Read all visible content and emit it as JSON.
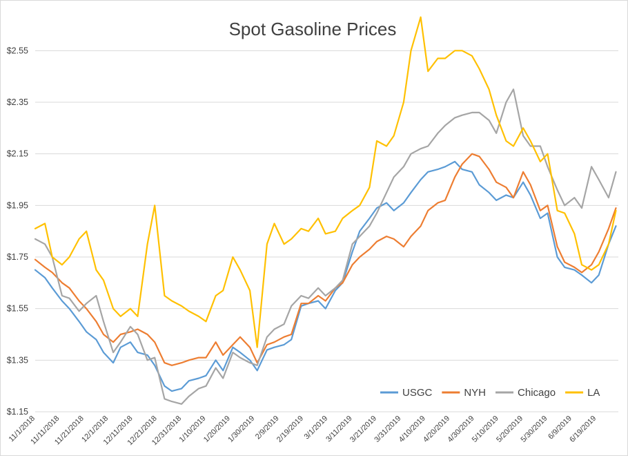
{
  "chart_data": {
    "type": "line",
    "title": "Spot Gasoline Prices",
    "xlabel": "",
    "ylabel": "",
    "ylim": [
      1.15,
      2.65
    ],
    "y_ticks": [
      "$1.15",
      "$1.35",
      "$1.55",
      "$1.75",
      "$1.95",
      "$2.15",
      "$2.35",
      "$2.55"
    ],
    "y_tick_values": [
      1.15,
      1.35,
      1.55,
      1.75,
      1.95,
      2.15,
      2.35,
      2.55
    ],
    "x_range": [
      "2018-11-01",
      "2019-06-28"
    ],
    "x_ticks": [
      "11/1/2018",
      "11/11/2018",
      "11/21/2018",
      "12/1/2018",
      "12/11/2018",
      "12/21/2018",
      "12/31/2018",
      "1/10/2019",
      "1/20/2019",
      "1/30/2019",
      "2/9/2019",
      "2/19/2019",
      "3/1/2019",
      "3/11/2019",
      "3/21/2019",
      "3/31/2019",
      "4/10/2019",
      "4/20/2019",
      "4/30/2019",
      "5/10/2019",
      "5/20/2019",
      "5/30/2019",
      "6/9/2019",
      "6/19/2019"
    ],
    "x_tick_dates": [
      "2018-11-01",
      "2018-11-11",
      "2018-11-21",
      "2018-12-01",
      "2018-12-11",
      "2018-12-21",
      "2018-12-31",
      "2019-01-10",
      "2019-01-20",
      "2019-01-30",
      "2019-02-09",
      "2019-02-19",
      "2019-03-01",
      "2019-03-11",
      "2019-03-21",
      "2019-03-31",
      "2019-04-10",
      "2019-04-20",
      "2019-04-30",
      "2019-05-10",
      "2019-05-20",
      "2019-05-30",
      "2019-06-09",
      "2019-06-19"
    ],
    "grid": true,
    "legend_position": "bottom-right",
    "series": [
      {
        "name": "USGC",
        "color": "#5b9bd5",
        "x": [
          "2018-11-01",
          "2018-11-05",
          "2018-11-08",
          "2018-11-12",
          "2018-11-15",
          "2018-11-19",
          "2018-11-22",
          "2018-11-26",
          "2018-11-29",
          "2018-12-03",
          "2018-12-06",
          "2018-12-10",
          "2018-12-13",
          "2018-12-17",
          "2018-12-20",
          "2018-12-24",
          "2018-12-27",
          "2018-12-31",
          "2019-01-03",
          "2019-01-07",
          "2019-01-10",
          "2019-01-14",
          "2019-01-17",
          "2019-01-21",
          "2019-01-24",
          "2019-01-28",
          "2019-01-31",
          "2019-02-04",
          "2019-02-07",
          "2019-02-11",
          "2019-02-14",
          "2019-02-18",
          "2019-02-21",
          "2019-02-25",
          "2019-02-28",
          "2019-03-04",
          "2019-03-07",
          "2019-03-11",
          "2019-03-14",
          "2019-03-18",
          "2019-03-21",
          "2019-03-25",
          "2019-03-28",
          "2019-04-01",
          "2019-04-04",
          "2019-04-08",
          "2019-04-11",
          "2019-04-15",
          "2019-04-18",
          "2019-04-22",
          "2019-04-25",
          "2019-04-29",
          "2019-05-02",
          "2019-05-06",
          "2019-05-09",
          "2019-05-13",
          "2019-05-16",
          "2019-05-20",
          "2019-05-23",
          "2019-05-27",
          "2019-05-30",
          "2019-06-03",
          "2019-06-06",
          "2019-06-10",
          "2019-06-13",
          "2019-06-17",
          "2019-06-20",
          "2019-06-24",
          "2019-06-27"
        ],
        "values": [
          1.7,
          1.67,
          1.63,
          1.58,
          1.55,
          1.5,
          1.46,
          1.43,
          1.38,
          1.34,
          1.4,
          1.42,
          1.38,
          1.37,
          1.33,
          1.25,
          1.23,
          1.24,
          1.27,
          1.28,
          1.29,
          1.35,
          1.31,
          1.4,
          1.38,
          1.35,
          1.31,
          1.39,
          1.4,
          1.41,
          1.43,
          1.56,
          1.57,
          1.58,
          1.55,
          1.62,
          1.65,
          1.77,
          1.85,
          1.9,
          1.94,
          1.96,
          1.93,
          1.96,
          2.0,
          2.05,
          2.08,
          2.09,
          2.1,
          2.12,
          2.09,
          2.08,
          2.03,
          2.0,
          1.97,
          1.99,
          1.98,
          2.04,
          1.99,
          1.9,
          1.92,
          1.75,
          1.71,
          1.7,
          1.68,
          1.65,
          1.68,
          1.8,
          1.87
        ]
      },
      {
        "name": "NYH",
        "color": "#ed7d31",
        "x": [
          "2018-11-01",
          "2018-11-05",
          "2018-11-08",
          "2018-11-12",
          "2018-11-15",
          "2018-11-19",
          "2018-11-22",
          "2018-11-26",
          "2018-11-29",
          "2018-12-03",
          "2018-12-06",
          "2018-12-10",
          "2018-12-13",
          "2018-12-17",
          "2018-12-20",
          "2018-12-24",
          "2018-12-27",
          "2018-12-31",
          "2019-01-03",
          "2019-01-07",
          "2019-01-10",
          "2019-01-14",
          "2019-01-17",
          "2019-01-21",
          "2019-01-24",
          "2019-01-28",
          "2019-01-31",
          "2019-02-04",
          "2019-02-07",
          "2019-02-11",
          "2019-02-14",
          "2019-02-18",
          "2019-02-21",
          "2019-02-25",
          "2019-02-28",
          "2019-03-04",
          "2019-03-07",
          "2019-03-11",
          "2019-03-14",
          "2019-03-18",
          "2019-03-21",
          "2019-03-25",
          "2019-03-28",
          "2019-04-01",
          "2019-04-04",
          "2019-04-08",
          "2019-04-11",
          "2019-04-15",
          "2019-04-18",
          "2019-04-22",
          "2019-04-25",
          "2019-04-29",
          "2019-05-02",
          "2019-05-06",
          "2019-05-09",
          "2019-05-13",
          "2019-05-16",
          "2019-05-20",
          "2019-05-23",
          "2019-05-27",
          "2019-05-30",
          "2019-06-03",
          "2019-06-06",
          "2019-06-10",
          "2019-06-13",
          "2019-06-17",
          "2019-06-20",
          "2019-06-24",
          "2019-06-27"
        ],
        "values": [
          1.74,
          1.71,
          1.69,
          1.65,
          1.63,
          1.58,
          1.55,
          1.5,
          1.45,
          1.42,
          1.45,
          1.46,
          1.47,
          1.45,
          1.42,
          1.34,
          1.33,
          1.34,
          1.35,
          1.36,
          1.36,
          1.42,
          1.37,
          1.41,
          1.44,
          1.4,
          1.34,
          1.41,
          1.42,
          1.44,
          1.45,
          1.57,
          1.57,
          1.6,
          1.58,
          1.63,
          1.65,
          1.72,
          1.75,
          1.78,
          1.81,
          1.83,
          1.82,
          1.79,
          1.83,
          1.87,
          1.93,
          1.96,
          1.97,
          2.06,
          2.11,
          2.15,
          2.14,
          2.09,
          2.04,
          2.02,
          1.98,
          2.08,
          2.03,
          1.93,
          1.95,
          1.79,
          1.73,
          1.71,
          1.69,
          1.72,
          1.77,
          1.86,
          1.94
        ]
      },
      {
        "name": "Chicago",
        "color": "#a5a5a5",
        "x": [
          "2018-11-01",
          "2018-11-05",
          "2018-11-08",
          "2018-11-12",
          "2018-11-15",
          "2018-11-19",
          "2018-11-22",
          "2018-11-26",
          "2018-11-29",
          "2018-12-03",
          "2018-12-06",
          "2018-12-10",
          "2018-12-13",
          "2018-12-17",
          "2018-12-20",
          "2018-12-24",
          "2018-12-27",
          "2018-12-31",
          "2019-01-03",
          "2019-01-07",
          "2019-01-10",
          "2019-01-14",
          "2019-01-17",
          "2019-01-21",
          "2019-01-24",
          "2019-01-28",
          "2019-01-31",
          "2019-02-04",
          "2019-02-07",
          "2019-02-11",
          "2019-02-14",
          "2019-02-18",
          "2019-02-21",
          "2019-02-25",
          "2019-02-28",
          "2019-03-04",
          "2019-03-07",
          "2019-03-11",
          "2019-03-14",
          "2019-03-18",
          "2019-03-21",
          "2019-03-25",
          "2019-03-28",
          "2019-04-01",
          "2019-04-04",
          "2019-04-08",
          "2019-04-11",
          "2019-04-15",
          "2019-04-18",
          "2019-04-22",
          "2019-04-25",
          "2019-04-29",
          "2019-05-02",
          "2019-05-06",
          "2019-05-09",
          "2019-05-13",
          "2019-05-16",
          "2019-05-20",
          "2019-05-23",
          "2019-05-27",
          "2019-05-30",
          "2019-06-03",
          "2019-06-06",
          "2019-06-10",
          "2019-06-13",
          "2019-06-17",
          "2019-06-20",
          "2019-06-24",
          "2019-06-27"
        ],
        "values": [
          1.82,
          1.8,
          1.75,
          1.6,
          1.59,
          1.54,
          1.57,
          1.6,
          1.5,
          1.38,
          1.42,
          1.48,
          1.45,
          1.35,
          1.36,
          1.2,
          1.19,
          1.18,
          1.21,
          1.24,
          1.25,
          1.32,
          1.28,
          1.38,
          1.36,
          1.34,
          1.33,
          1.44,
          1.47,
          1.49,
          1.56,
          1.6,
          1.59,
          1.63,
          1.6,
          1.63,
          1.66,
          1.8,
          1.83,
          1.87,
          1.92,
          2.0,
          2.06,
          2.1,
          2.15,
          2.17,
          2.18,
          2.23,
          2.26,
          2.29,
          2.3,
          2.31,
          2.31,
          2.28,
          2.23,
          2.35,
          2.4,
          2.22,
          2.18,
          2.18,
          2.1,
          2.01,
          1.95,
          1.98,
          1.94,
          2.1,
          2.05,
          1.98,
          2.08
        ]
      },
      {
        "name": "LA",
        "color": "#ffc000",
        "x": [
          "2018-11-01",
          "2018-11-05",
          "2018-11-08",
          "2018-11-12",
          "2018-11-15",
          "2018-11-19",
          "2018-11-22",
          "2018-11-26",
          "2018-11-29",
          "2018-12-03",
          "2018-12-06",
          "2018-12-10",
          "2018-12-13",
          "2018-12-17",
          "2018-12-20",
          "2018-12-24",
          "2018-12-27",
          "2018-12-31",
          "2019-01-03",
          "2019-01-07",
          "2019-01-10",
          "2019-01-14",
          "2019-01-17",
          "2019-01-21",
          "2019-01-24",
          "2019-01-28",
          "2019-01-31",
          "2019-02-04",
          "2019-02-07",
          "2019-02-11",
          "2019-02-14",
          "2019-02-18",
          "2019-02-21",
          "2019-02-25",
          "2019-02-28",
          "2019-03-04",
          "2019-03-07",
          "2019-03-11",
          "2019-03-14",
          "2019-03-18",
          "2019-03-21",
          "2019-03-25",
          "2019-03-28",
          "2019-04-01",
          "2019-04-04",
          "2019-04-08",
          "2019-04-11",
          "2019-04-15",
          "2019-04-18",
          "2019-04-22",
          "2019-04-25",
          "2019-04-29",
          "2019-05-02",
          "2019-05-06",
          "2019-05-09",
          "2019-05-13",
          "2019-05-16",
          "2019-05-20",
          "2019-05-23",
          "2019-05-27",
          "2019-05-30",
          "2019-06-03",
          "2019-06-06",
          "2019-06-10",
          "2019-06-13",
          "2019-06-17",
          "2019-06-20",
          "2019-06-24",
          "2019-06-27"
        ],
        "values": [
          1.86,
          1.88,
          1.75,
          1.72,
          1.75,
          1.82,
          1.85,
          1.7,
          1.66,
          1.55,
          1.52,
          1.55,
          1.52,
          1.8,
          1.95,
          1.6,
          1.58,
          1.56,
          1.54,
          1.52,
          1.5,
          1.6,
          1.62,
          1.75,
          1.7,
          1.62,
          1.4,
          1.8,
          1.88,
          1.8,
          1.82,
          1.86,
          1.85,
          1.9,
          1.84,
          1.85,
          1.9,
          1.93,
          1.95,
          2.02,
          2.2,
          2.18,
          2.22,
          2.35,
          2.55,
          2.68,
          2.47,
          2.52,
          2.52,
          2.55,
          2.55,
          2.53,
          2.48,
          2.4,
          2.3,
          2.2,
          2.18,
          2.25,
          2.2,
          2.12,
          2.15,
          1.93,
          1.92,
          1.84,
          1.72,
          1.7,
          1.72,
          1.8,
          1.93
        ]
      }
    ]
  }
}
